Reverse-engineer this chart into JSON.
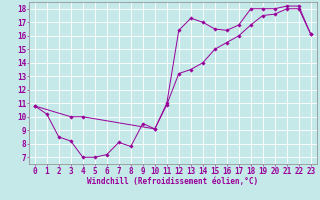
{
  "xlabel": "Windchill (Refroidissement éolien,°C)",
  "background_color": "#c5e8e8",
  "grid_color": "#ffffff",
  "line_color": "#990099",
  "spine_color": "#888888",
  "xlim": [
    -0.5,
    23.5
  ],
  "ylim": [
    6.5,
    18.5
  ],
  "xticks": [
    0,
    1,
    2,
    3,
    4,
    5,
    6,
    7,
    8,
    9,
    10,
    11,
    12,
    13,
    14,
    15,
    16,
    17,
    18,
    19,
    20,
    21,
    22,
    23
  ],
  "yticks": [
    7,
    8,
    9,
    10,
    11,
    12,
    13,
    14,
    15,
    16,
    17,
    18
  ],
  "line1_x": [
    0,
    1,
    2,
    3,
    4,
    5,
    6,
    7,
    8,
    9,
    10,
    11,
    12,
    13,
    14,
    15,
    16,
    17,
    18,
    19,
    20,
    21,
    22,
    23
  ],
  "line1_y": [
    10.8,
    10.2,
    8.5,
    8.2,
    7.0,
    7.0,
    7.2,
    8.1,
    7.8,
    9.5,
    9.1,
    11.0,
    16.4,
    17.3,
    17.0,
    16.5,
    16.4,
    16.8,
    18.0,
    18.0,
    18.0,
    18.2,
    18.2,
    16.1
  ],
  "line2_x": [
    0,
    3,
    4,
    10,
    11,
    12,
    13,
    14,
    15,
    16,
    17,
    18,
    19,
    20,
    21,
    22,
    23
  ],
  "line2_y": [
    10.8,
    10.0,
    10.0,
    9.1,
    10.9,
    13.2,
    13.5,
    14.0,
    15.0,
    15.5,
    16.0,
    16.8,
    17.5,
    17.6,
    18.0,
    18.0,
    16.1
  ],
  "xlabel_fontsize": 5.5,
  "tick_fontsize": 5.5,
  "linewidth": 0.7,
  "markersize": 1.8
}
